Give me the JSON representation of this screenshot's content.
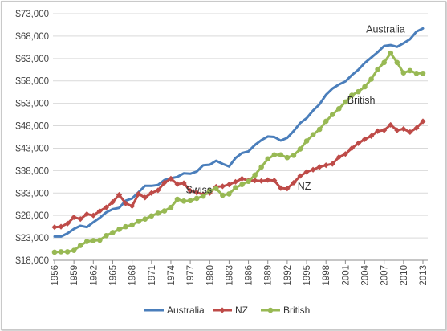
{
  "chart_data": {
    "type": "line",
    "title": "",
    "xlabel": "",
    "ylabel": "",
    "x": [
      1956,
      1957,
      1958,
      1959,
      1960,
      1961,
      1962,
      1963,
      1964,
      1965,
      1966,
      1967,
      1968,
      1969,
      1970,
      1971,
      1972,
      1973,
      1974,
      1975,
      1976,
      1977,
      1978,
      1979,
      1980,
      1981,
      1982,
      1983,
      1984,
      1985,
      1986,
      1987,
      1988,
      1989,
      1990,
      1991,
      1992,
      1993,
      1994,
      1995,
      1996,
      1997,
      1998,
      1999,
      2000,
      2001,
      2002,
      2003,
      2004,
      2005,
      2006,
      2007,
      2008,
      2009,
      2010,
      2011,
      2012,
      2013
    ],
    "x_ticks": [
      "1956",
      "1959",
      "1962",
      "1965",
      "1968",
      "1971",
      "1974",
      "1977",
      "1980",
      "1983",
      "1986",
      "1989",
      "1992",
      "1995",
      "1998",
      "2001",
      "2004",
      "2007",
      "2010",
      "2013"
    ],
    "y_ticks": [
      "$18,000",
      "$23,000",
      "$28,000",
      "$33,000",
      "$38,000",
      "$43,000",
      "$48,000",
      "$53,000",
      "$58,000",
      "$63,000",
      "$68,000",
      "$73,000"
    ],
    "ylim": [
      18000,
      73000
    ],
    "grid": "horizontal",
    "legend_position": "bottom",
    "series": [
      {
        "name": "Australia",
        "color": "#4a7ebb",
        "marker": "none",
        "values": [
          23300,
          23300,
          24000,
          25000,
          25700,
          25400,
          26500,
          27500,
          28700,
          29400,
          29700,
          31300,
          31800,
          33200,
          34600,
          34600,
          34800,
          35900,
          36300,
          36600,
          37400,
          37300,
          37800,
          39200,
          39300,
          40200,
          39500,
          38900,
          40800,
          41900,
          42300,
          43700,
          44800,
          45600,
          45500,
          44700,
          45300,
          46800,
          48600,
          49700,
          51400,
          52800,
          54900,
          56300,
          57200,
          57900,
          59300,
          60500,
          62000,
          63200,
          64400,
          65800,
          66000,
          65600,
          66400,
          67300,
          69000,
          69700
        ]
      },
      {
        "name": "NZ",
        "color": "#be4b48",
        "marker": "diamond",
        "values": [
          25400,
          25500,
          26200,
          27600,
          27200,
          28300,
          28000,
          29000,
          29800,
          31000,
          32600,
          30700,
          30100,
          32800,
          32000,
          33000,
          33600,
          35300,
          36200,
          35000,
          35200,
          33500,
          33100,
          32700,
          33000,
          34400,
          34500,
          34900,
          35500,
          36200,
          35800,
          35800,
          35700,
          35900,
          35800,
          34100,
          34000,
          35300,
          36800,
          37700,
          38200,
          38800,
          39200,
          39500,
          41000,
          41700,
          43000,
          44100,
          45000,
          45700,
          46800,
          47000,
          48200,
          47000,
          47300,
          46600,
          47500,
          49000
        ]
      },
      {
        "name": "British",
        "color": "#98b954",
        "marker": "circle",
        "values": [
          19800,
          19900,
          19900,
          20200,
          21300,
          22200,
          22400,
          22500,
          23500,
          24200,
          24900,
          25500,
          25900,
          26700,
          27200,
          27900,
          28500,
          29000,
          29800,
          31600,
          31200,
          31300,
          31800,
          32300,
          33500,
          34000,
          32500,
          32800,
          34200,
          34900,
          35600,
          37000,
          38800,
          40600,
          41500,
          41500,
          40900,
          41400,
          42800,
          44600,
          46000,
          47200,
          49000,
          50500,
          51800,
          53300,
          54800,
          55600,
          56700,
          58400,
          60600,
          62100,
          64200,
          62100,
          59800,
          60300,
          59700,
          59700
        ]
      }
    ],
    "annotations": [
      {
        "text": "Australia",
        "x": 2004.2,
        "y": 68800
      },
      {
        "text": "British",
        "x": 2001.3,
        "y": 52900
      },
      {
        "text": "Swiss",
        "x": 1976.3,
        "y": 33000
      },
      {
        "text": "NZ",
        "x": 1993.6,
        "y": 33800
      }
    ]
  }
}
